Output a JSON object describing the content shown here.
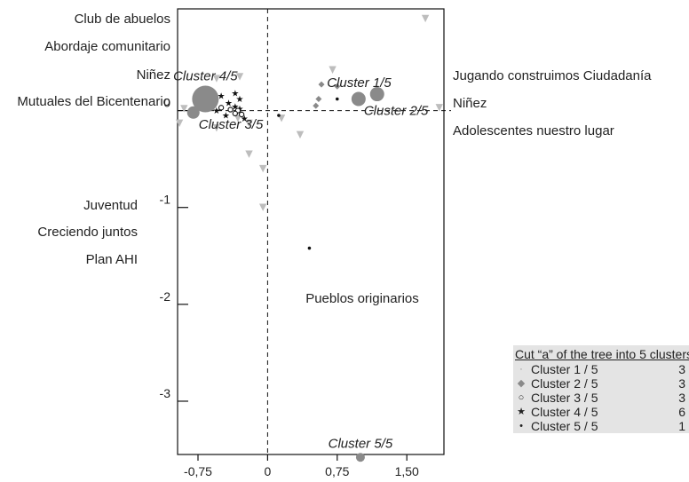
{
  "chart_data": {
    "type": "scatter",
    "xlim": [
      -0.97,
      1.9
    ],
    "ylim": [
      -3.55,
      1.05
    ],
    "x_ticks": [
      {
        "value": -0.75,
        "label": "-0,75"
      },
      {
        "value": 0,
        "label": "0"
      },
      {
        "value": 0.75,
        "label": "0,75"
      },
      {
        "value": 1.5,
        "label": "1,50"
      }
    ],
    "y_ticks": [
      {
        "value": 0,
        "label": "0"
      },
      {
        "value": -1,
        "label": "-1"
      },
      {
        "value": -2,
        "label": "-2"
      },
      {
        "value": -3,
        "label": "-3"
      }
    ],
    "colors": {
      "gray": "#8a8a8a",
      "light": "#bdbdbd",
      "dark": "#111111",
      "axis": "#111111"
    },
    "triangles": [
      [
        1.7,
        0.95
      ],
      [
        0.7,
        0.42
      ],
      [
        -0.3,
        0.35
      ],
      [
        -0.55,
        0.33
      ],
      [
        -0.7,
        0.18
      ],
      [
        -0.9,
        0.02
      ],
      [
        -0.95,
        -0.13
      ],
      [
        -0.2,
        -0.13
      ],
      [
        -0.55,
        -0.18
      ],
      [
        -0.2,
        -0.45
      ],
      [
        0.15,
        -0.08
      ],
      [
        0.35,
        -0.25
      ],
      [
        -0.05,
        -0.6
      ],
      [
        -0.05,
        -1.0
      ],
      [
        -0.32,
        -0.08
      ],
      [
        1.85,
        0.03
      ]
    ],
    "diamonds": [
      [
        0.58,
        0.27
      ],
      [
        0.75,
        0.25
      ],
      [
        0.55,
        0.12
      ],
      [
        0.52,
        0.05
      ]
    ],
    "stars": [
      [
        -0.7,
        0.12
      ],
      [
        -0.5,
        0.15
      ],
      [
        -0.42,
        0.08
      ],
      [
        -0.35,
        0.18
      ],
      [
        -0.3,
        0.12
      ],
      [
        -0.35,
        0.04
      ],
      [
        -0.3,
        0.02
      ],
      [
        -0.45,
        -0.05
      ],
      [
        -0.25,
        -0.08
      ],
      [
        -0.55,
        0.0
      ]
    ],
    "circles_open": [
      [
        -0.5,
        0.03
      ],
      [
        -0.4,
        0.01
      ],
      [
        -0.32,
        0.0
      ],
      [
        -0.35,
        -0.03
      ],
      [
        -0.28,
        -0.04
      ]
    ],
    "dots": [
      [
        0.45,
        -1.42
      ],
      [
        0.12,
        -0.05
      ],
      [
        0.75,
        0.12
      ]
    ],
    "centroids": [
      {
        "label": "Cluster 1/5",
        "x": 1.18,
        "y": 0.17,
        "size": 8,
        "label_pos": "above-left"
      },
      {
        "label": "Cluster 2/5",
        "x": 0.98,
        "y": 0.12,
        "size": 8,
        "label_pos": "below-right"
      },
      {
        "label": "Cluster 3/5",
        "x": -0.8,
        "y": -0.02,
        "size": 7,
        "label_pos": "below-right"
      },
      {
        "label": "Cluster 4/5",
        "x": -0.67,
        "y": 0.12,
        "size": 15,
        "label_pos": "above"
      },
      {
        "label": "Cluster 5/5",
        "x": 1.0,
        "y": -3.58,
        "size": 5,
        "label_pos": "above"
      }
    ],
    "variable_labels": {
      "upper_left": [
        "Club de abuelos",
        "Abordaje comunitario",
        "Niñez",
        "Mutuales del Bicentenario"
      ],
      "upper_right": [
        "Jugando construimos Ciudadanía",
        "Niñez",
        "Adolescentes nuestro lugar"
      ],
      "lower_left": [
        "Juventud",
        "Creciendo juntos",
        "Plan AHI"
      ],
      "lower_center": "Pueblos originarios"
    },
    "legend": {
      "title": "Cut “a” of the tree into 5 clusters",
      "items": [
        {
          "symbol": "·",
          "name": "Cluster 1 / 5",
          "count": "3"
        },
        {
          "symbol": "◆",
          "name": "Cluster 2 / 5",
          "count": "3"
        },
        {
          "symbol": "○",
          "name": "Cluster 3 / 5",
          "count": "3"
        },
        {
          "symbol": "★",
          "name": "Cluster 4 / 5",
          "count": "6"
        },
        {
          "symbol": "•",
          "name": "Cluster 5 / 5",
          "count": "1"
        }
      ]
    }
  }
}
